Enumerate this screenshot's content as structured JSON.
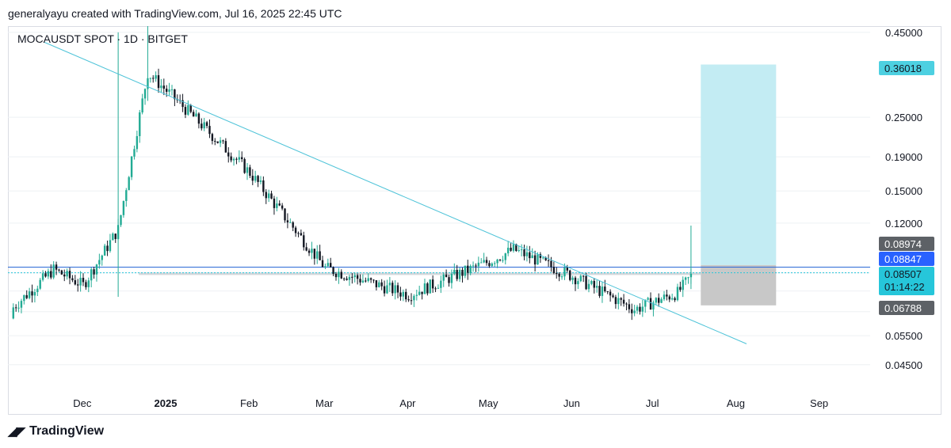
{
  "caption": "generalyayu created with TradingView.com, Jul 16, 2025 22:45 UTC",
  "symbol": "MOCAUSDT SPOT · 1D · BITGET",
  "footer": {
    "brand": "TradingView",
    "logo_icon": "tradingview-logo-icon"
  },
  "colors": {
    "up": "#22ab94",
    "down": "#131722",
    "trendline": "#4dc3d8",
    "target_zone": "#c3ecf3",
    "stop_zone": "#c8c8c8",
    "grid": "#eef0f4",
    "price_line": "#2c6ad6",
    "label_target": "#4dd0e1",
    "label_gray": "#5d6166",
    "label_blue": "#2962ff",
    "label_current": "#26c6da"
  },
  "chart_data": {
    "type": "candlestick",
    "scale": "log",
    "x_axis": {
      "labels": [
        "Dec",
        "2025",
        "Feb",
        "Mar",
        "Apr",
        "May",
        "Jun",
        "Jul",
        "Aug",
        "Sep"
      ]
    },
    "y_axis": {
      "ticks": [
        "0.45000",
        "0.25000",
        "0.19000",
        "0.15000",
        "0.12000",
        "0.05500",
        "0.04500"
      ],
      "range": [
        0.0375,
        0.47
      ]
    },
    "price_labels": [
      {
        "role": "target",
        "text": "0.36018"
      },
      {
        "role": "entry-high",
        "text": "0.08974"
      },
      {
        "role": "last-close",
        "text": "0.08847"
      },
      {
        "role": "current",
        "text": "0.08507",
        "sub": "01:14:22"
      },
      {
        "role": "stop",
        "text": "0.06788"
      }
    ],
    "monthly_closes": [
      {
        "date": "2024-11-05",
        "close": 0.067
      },
      {
        "date": "2024-11-20",
        "close": 0.087
      },
      {
        "date": "2024-12-01",
        "close": 0.078
      },
      {
        "date": "2024-12-14",
        "close": 0.115
      },
      {
        "date": "2024-12-25",
        "close": 0.34
      },
      {
        "date": "2025-01-05",
        "close": 0.28
      },
      {
        "date": "2025-02-01",
        "close": 0.17
      },
      {
        "date": "2025-03-01",
        "close": 0.088
      },
      {
        "date": "2025-04-01",
        "close": 0.073
      },
      {
        "date": "2025-05-01",
        "close": 0.092
      },
      {
        "date": "2025-05-10",
        "close": 0.1
      },
      {
        "date": "2025-06-01",
        "close": 0.083
      },
      {
        "date": "2025-06-24",
        "close": 0.066
      },
      {
        "date": "2025-07-10",
        "close": 0.074
      },
      {
        "date": "2025-07-16",
        "close": 0.08507
      }
    ],
    "trendline": [
      {
        "date": "2024-11-17",
        "price": 0.42
      },
      {
        "date": "2025-08-05",
        "price": 0.052
      }
    ],
    "position": {
      "entry": 0.08974,
      "target": 0.36018,
      "stop": 0.06788
    },
    "grid": true
  }
}
